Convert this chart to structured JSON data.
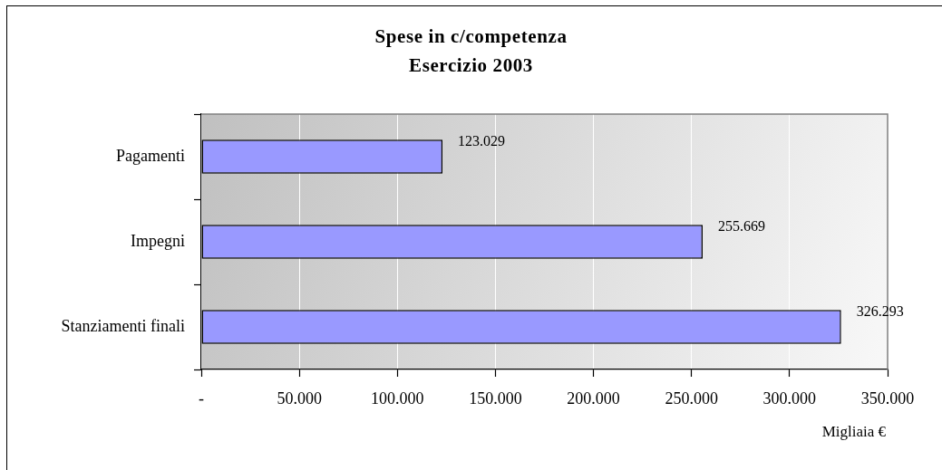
{
  "chart_data": {
    "type": "bar",
    "orientation": "horizontal",
    "title": "Spese in c/competenza",
    "subtitle": "Esercizio 2003",
    "xlabel": "Migliaia €",
    "categories": [
      "Pagamenti",
      "Impegni",
      "Stanziamenti finali"
    ],
    "values": [
      123029,
      255669,
      326293
    ],
    "color": "#9999ff",
    "value_labels": [
      "123.029",
      "255.669",
      "326.293"
    ],
    "xlim": [
      0,
      350000
    ],
    "xticks": [
      {
        "value": 0,
        "label": "-"
      },
      {
        "value": 50000,
        "label": "50.000"
      },
      {
        "value": 100000,
        "label": "100.000"
      },
      {
        "value": 150000,
        "label": "150.000"
      },
      {
        "value": 200000,
        "label": "200.000"
      },
      {
        "value": 250000,
        "label": "250.000"
      },
      {
        "value": 300000,
        "label": "300.000"
      },
      {
        "value": 350000,
        "label": "350.000"
      }
    ],
    "grid": "x"
  }
}
